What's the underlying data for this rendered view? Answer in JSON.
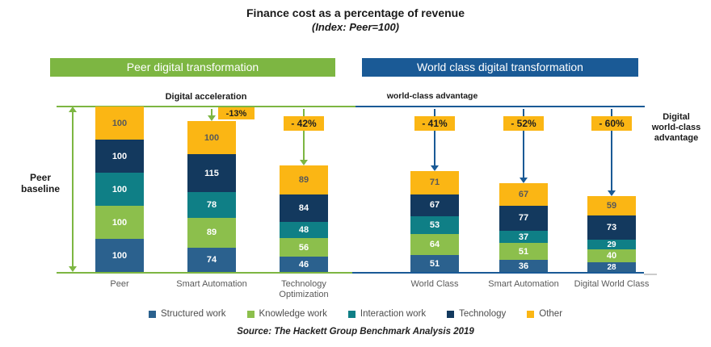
{
  "title": "Finance cost as a percentage of revenue",
  "subtitle": "(Index: Peer=100)",
  "headers": {
    "peer": "Peer digital transformation",
    "world": "World class digital transformation"
  },
  "labels": {
    "digital_acceleration": "Digital acceleration",
    "world_class_advantage": "world-class advantage",
    "peer_baseline_line1": "Peer",
    "peer_baseline_line2": "baseline",
    "digital_wc_line1": "Digital",
    "digital_wc_line2": "world-class",
    "digital_wc_line3": "advantage"
  },
  "chart_data": {
    "type": "bar",
    "stacked": true,
    "title": "Finance cost as a percentage of revenue",
    "subtitle": "(Index: Peer=100)",
    "baseline_index": 100,
    "groups": [
      {
        "label": "Peer digital transformation",
        "color": "#7DB642",
        "categories": [
          "Peer",
          "Smart Automation",
          "Technology Optimization"
        ]
      },
      {
        "label": "World class digital transformation",
        "color": "#1A5A96",
        "categories": [
          "World Class",
          "Smart Automation",
          "Digital World Class"
        ]
      }
    ],
    "categories": [
      "Peer",
      "Smart Automation",
      "Technology Optimization",
      "World Class",
      "Smart Automation",
      "Digital World Class"
    ],
    "series": [
      {
        "name": "Structured work",
        "color": "#2B618E",
        "label_color": "#ffffff",
        "values": [
          100,
          74,
          46,
          51,
          36,
          28
        ]
      },
      {
        "name": "Knowledge work",
        "color": "#8CBF4C",
        "label_color": "#ffffff",
        "values": [
          100,
          89,
          56,
          64,
          51,
          40
        ]
      },
      {
        "name": "Interaction work",
        "color": "#0F7F86",
        "label_color": "#ffffff",
        "values": [
          100,
          78,
          48,
          53,
          37,
          29
        ]
      },
      {
        "name": "Technology",
        "color": "#13395E",
        "label_color": "#ffffff",
        "values": [
          100,
          115,
          84,
          67,
          77,
          73
        ]
      },
      {
        "name": "Other",
        "color": "#FBB614",
        "label_color": "#595959",
        "values": [
          100,
          100,
          89,
          71,
          67,
          59
        ]
      }
    ],
    "callouts": [
      "",
      "-13%",
      "- 42%",
      "- 41%",
      "- 52%",
      "- 60%"
    ],
    "annotations": [
      "Digital acceleration",
      "world-class advantage",
      "Peer baseline",
      "Digital world-class advantage"
    ],
    "legend_position": "bottom"
  },
  "colors": {
    "peer_green": "#7DB642",
    "world_blue": "#1A5A96",
    "callout_bg": "#FBB614",
    "category_gray": "#595959",
    "baseline_tail_gray": "#cccccc"
  },
  "source": "Source: The Hackett Group Benchmark Analysis 2019"
}
